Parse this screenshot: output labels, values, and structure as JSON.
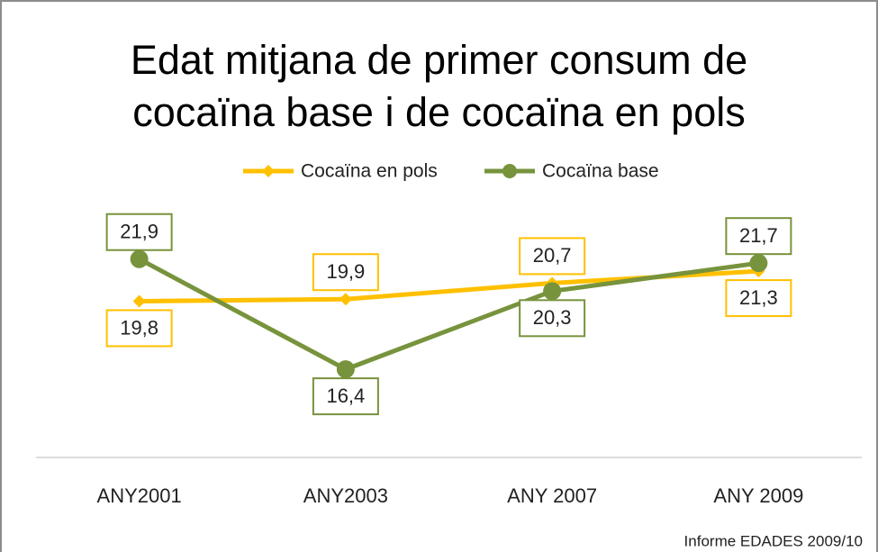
{
  "chart_data": {
    "type": "line",
    "title": "Edat mitjana de primer consum de cocaïna base i de cocaïna en pols",
    "source": "Informe EDADES 2009/10",
    "categories": [
      "ANY2001",
      "ANY2003",
      "ANY 2007",
      "ANY 2009"
    ],
    "series": [
      {
        "name": "Cocaïna en pols",
        "color": "#ffc000",
        "marker": "diamond",
        "values": [
          19.8,
          19.9,
          20.7,
          21.3
        ],
        "value_labels": [
          "19,8",
          "19,9",
          "20,7",
          "21,3"
        ]
      },
      {
        "name": "Cocaïna base",
        "color": "#77933c",
        "marker": "circle",
        "values": [
          21.9,
          16.4,
          20.3,
          21.7
        ],
        "value_labels": [
          "21,9",
          "16,4",
          "20,3",
          "21,7"
        ]
      }
    ],
    "ylim": [
      12,
      24
    ],
    "legend": "top"
  }
}
